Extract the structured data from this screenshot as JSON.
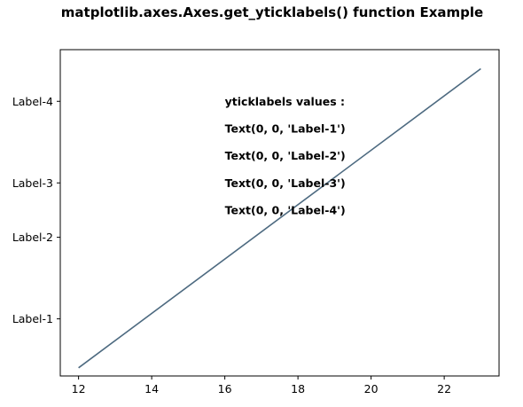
{
  "chart_data": {
    "type": "line",
    "title": "matplotlib.axes.Axes.get_yticklabels() function Example",
    "xlabel": "",
    "ylabel": "",
    "x": [
      12,
      23
    ],
    "series": [
      {
        "values": [
          0,
          11
        ],
        "color": "#4d6a80"
      }
    ],
    "xlim": [
      11.5,
      23.5
    ],
    "ylim": [
      -0.3,
      11.7
    ],
    "xticks": [
      12,
      14,
      16,
      18,
      20,
      22
    ],
    "xtick_labels": [
      "12",
      "14",
      "16",
      "18",
      "20",
      "22"
    ],
    "yticks": [
      1.8,
      4.8,
      6.8,
      9.8
    ],
    "ytick_labels": [
      "Label-1",
      "Label-2",
      "Label-3",
      "Label-4"
    ],
    "grid": false,
    "annotations": [
      {
        "text": "yticklabels values :",
        "x": 16,
        "y": 9.8
      },
      {
        "text": "Text(0, 0, 'Label-1')",
        "x": 16,
        "y": 8.8
      },
      {
        "text": "Text(0, 0, 'Label-2')",
        "x": 16,
        "y": 7.8
      },
      {
        "text": "Text(0, 0, 'Label-3')",
        "x": 16,
        "y": 6.8
      },
      {
        "text": "Text(0, 0, 'Label-4')",
        "x": 16,
        "y": 5.8
      }
    ]
  }
}
